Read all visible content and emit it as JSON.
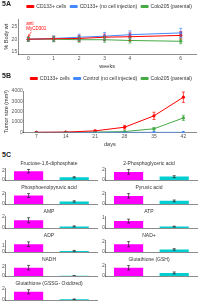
{
  "chart_data": [
    {
      "type": "line",
      "title": "5A",
      "x": [
        0,
        1,
        2,
        3,
        4,
        6
      ],
      "series": [
        {
          "name": "CD133+ cells",
          "color": "red",
          "values": [
            20,
            20.2,
            20.3,
            20.8,
            21,
            21.5
          ],
          "errors": [
            0.8,
            1.0,
            1.2,
            1.2,
            1.5,
            1.5
          ]
        },
        {
          "name": "CD133+ (no cell injection)",
          "color": "#4488FF",
          "values": [
            20,
            20.3,
            20.8,
            21.2,
            21.8,
            22.5
          ],
          "errors": [
            0.8,
            1.0,
            1.2,
            1.5,
            1.5,
            1.8
          ]
        },
        {
          "name": "Colo205 (parental)",
          "color": "#44AA44",
          "values": [
            20,
            20.0,
            19.8,
            19.8,
            19.5,
            19.2
          ],
          "errors": [
            0.8,
            1.0,
            1.0,
            1.0,
            1.0,
            1.0
          ]
        }
      ],
      "xlabel": "weeks",
      "ylabel": "% Body wt",
      "xlim": [
        -0.4,
        6.6
      ],
      "ylim": [
        14,
        28
      ],
      "xticks": [
        0,
        1,
        2,
        3,
        4,
        6
      ],
      "yticks": [
        15,
        20,
        25
      ],
      "marker": "circle",
      "grid": false,
      "legend": "upper right",
      "annotations": [
        {
          "text": "anti\nMyCD301",
          "x": 0,
          "y": 20.2,
          "color": "red"
        }
      ]
    },
    {
      "type": "line",
      "title": "5B",
      "x": [
        7,
        14,
        21,
        28,
        35,
        42
      ],
      "series": [
        {
          "name": "CD133+ cells",
          "color": "red",
          "values": [
            5,
            30,
            150,
            500,
            1600,
            3400
          ],
          "errors": [
            2,
            15,
            60,
            180,
            350,
            500
          ]
        },
        {
          "name": "Control (no cell injected)",
          "color": "#4488FF",
          "values": [
            2,
            3,
            3,
            3,
            3,
            3
          ],
          "errors": [
            1,
            1,
            1,
            1,
            1,
            1
          ]
        },
        {
          "name": "Colo205 (parental)",
          "color": "#44AA44",
          "values": [
            2,
            8,
            25,
            80,
            350,
            1400
          ],
          "errors": [
            1,
            4,
            8,
            30,
            120,
            250
          ]
        }
      ],
      "xlabel": "days",
      "ylabel": "Tumor size (mm³)",
      "xlim": [
        4,
        45
      ],
      "ylim": [
        0,
        4000
      ],
      "xticks": [
        7,
        14,
        21,
        28,
        35,
        42
      ],
      "yticks": [
        0,
        1000,
        2000,
        3000,
        4000
      ],
      "marker": "circle",
      "grid": false,
      "legend": "upper right"
    },
    {
      "type": "bar",
      "title": "5C",
      "charts": [
        {
          "type": "bar",
          "title": "Fructose-1,6-diphosphate",
          "categories": [
            null,
            null
          ],
          "values": [
            1.8,
            0.55
          ],
          "errors": [
            0.35,
            0.12
          ],
          "colors": [
            "#FF00FF",
            "#00CED1"
          ],
          "ylim": [
            0,
            2.45
          ],
          "yticks": [
            0,
            2
          ],
          "grid": false,
          "tick_labels": "y"
        },
        {
          "type": "bar",
          "title": "2-Phosphoglyceric acid",
          "categories": [
            null,
            null
          ],
          "values": [
            1.55,
            0.65
          ],
          "errors": [
            0.45,
            0.18
          ],
          "colors": [
            "#FF00FF",
            "#00CED1"
          ],
          "ylim": [
            0,
            2.3
          ],
          "yticks": [
            0,
            2
          ],
          "grid": false,
          "tick_labels": "y"
        },
        {
          "type": "bar",
          "title": "Phosphoenolpyruvic acid",
          "categories": [
            null,
            null
          ],
          "values": [
            1.65,
            0.5
          ],
          "errors": [
            0.38,
            0.13
          ],
          "colors": [
            "#FF00FF",
            "#00CED1"
          ],
          "ylim": [
            0,
            2.33
          ],
          "yticks": [
            0,
            2
          ],
          "grid": false,
          "tick_labels": "y"
        },
        {
          "type": "bar",
          "title": "Pyruvic acid",
          "categories": [
            null,
            null
          ],
          "values": [
            1.5,
            0.58
          ],
          "errors": [
            0.42,
            0.16
          ],
          "colors": [
            "#FF00FF",
            "#00CED1"
          ],
          "ylim": [
            0,
            2.22
          ],
          "yticks": [
            0,
            2
          ],
          "grid": false,
          "tick_labels": "y"
        },
        {
          "type": "bar",
          "title": "AMP",
          "categories": [
            null,
            null
          ],
          "values": [
            1.35,
            0.28
          ],
          "errors": [
            0.45,
            0.09
          ],
          "colors": [
            "#FF00FF",
            "#00CED1"
          ],
          "ylim": [
            0,
            2.1
          ],
          "yticks": [
            0,
            2
          ],
          "grid": false,
          "tick_labels": "y"
        },
        {
          "type": "bar",
          "title": "ATP",
          "categories": [
            null,
            null
          ],
          "values": [
            0.65,
            0.13
          ],
          "errors": [
            0.18,
            0.04
          ],
          "colors": [
            "#FF00FF",
            "#00CED1"
          ],
          "ylim": [
            0,
            1.13
          ],
          "yticks": [
            0,
            1
          ],
          "grid": false,
          "tick_labels": "y"
        },
        {
          "type": "bar",
          "title": "ADP",
          "categories": [
            null,
            null
          ],
          "values": [
            1.25,
            0.18
          ],
          "errors": [
            0.38,
            0.07
          ],
          "colors": [
            "#FF00FF",
            "#00CED1"
          ],
          "ylim": [
            0,
            1.93
          ],
          "yticks": [
            0,
            1
          ],
          "grid": false,
          "tick_labels": "y"
        },
        {
          "type": "bar",
          "title": "NAD+",
          "categories": [
            null,
            null
          ],
          "values": [
            1.45,
            0.48
          ],
          "errors": [
            0.48,
            0.14
          ],
          "colors": [
            "#FF00FF",
            "#00CED1"
          ],
          "ylim": [
            0,
            2.23
          ],
          "yticks": [
            0,
            2
          ],
          "grid": false,
          "tick_labels": "y"
        },
        {
          "type": "bar",
          "title": "NADH",
          "categories": [
            null,
            null
          ],
          "values": [
            1.75,
            0.05
          ],
          "errors": [
            0.48,
            0.02
          ],
          "colors": [
            "#FF00FF",
            "#00CED1"
          ],
          "ylim": [
            0,
            2.53
          ],
          "yticks": [
            0,
            2
          ],
          "grid": false,
          "tick_labels": "y"
        },
        {
          "type": "bar",
          "title": "Glutathione (GSH)",
          "categories": [
            null,
            null
          ],
          "values": [
            1.55,
            0.58
          ],
          "errors": [
            0.42,
            0.18
          ],
          "colors": [
            "#FF00FF",
            "#00CED1"
          ],
          "ylim": [
            0,
            2.27
          ],
          "yticks": [
            0,
            2
          ],
          "grid": false,
          "tick_labels": "y"
        },
        {
          "type": "bar",
          "title": "Glutathione (GSSG- Oxidized)",
          "categories": [
            null,
            null
          ],
          "values": [
            1.45,
            0.13
          ],
          "errors": [
            0.38,
            0.05
          ],
          "colors": [
            "#FF00FF",
            "#00CED1"
          ],
          "ylim": [
            0,
            2.13
          ],
          "yticks": [
            0,
            2
          ],
          "grid": false,
          "tick_labels": "y"
        }
      ]
    }
  ]
}
